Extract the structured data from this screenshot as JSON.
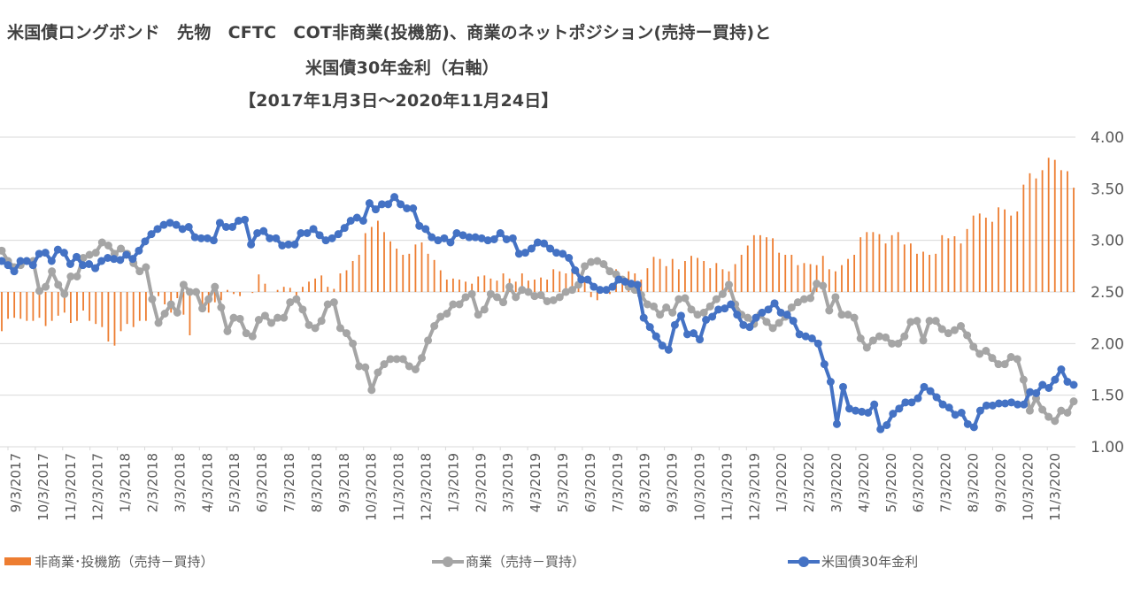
{
  "title_lines": [
    "米国債ロングボンド　先物　CFTC　COT非商業(投機筋)、商業のネットポジション(売持ー買持)と",
    "米国債30年金利（右軸）",
    "【2017年1月3日～2020年11月24日】"
  ],
  "legend": {
    "noncommercial": "非商業･投機筋（売持－買持）",
    "commercial": "商業（売持－買持）",
    "yield": "米国債30年金利"
  },
  "colors": {
    "noncommercial": "#ed7d31",
    "commercial": "#a5a5a5",
    "yield": "#4472c4",
    "grid": "#d9d9d9",
    "axis_text": "#595959"
  },
  "chart_data": {
    "type": "bar+line",
    "right_axis": {
      "ylim": [
        1.0,
        4.0
      ],
      "ticks": [
        "1.00",
        "1.50",
        "2.00",
        "2.50",
        "3.00",
        "3.50",
        "4.00"
      ]
    },
    "bar_baseline": 2.5,
    "grid": true,
    "legend_position": "bottom",
    "x_tick_labels": [
      "9/3/2017",
      "10/3/2017",
      "11/3/2017",
      "12/3/2017",
      "1/3/2018",
      "2/3/2018",
      "3/3/2018",
      "4/3/2018",
      "5/3/2018",
      "6/3/2018",
      "7/3/2018",
      "8/3/2018",
      "9/3/2018",
      "10/3/2018",
      "11/3/2018",
      "12/3/2018",
      "1/3/2019",
      "2/3/2019",
      "3/3/2019",
      "4/3/2019",
      "5/3/2019",
      "6/3/2019",
      "7/3/2019",
      "8/3/2019",
      "9/3/2019",
      "10/3/2019",
      "11/3/2019",
      "12/3/2019",
      "1/3/2020",
      "2/3/2020",
      "3/3/2020",
      "4/3/2020",
      "5/3/2020",
      "6/3/2020",
      "7/3/2020",
      "8/3/2020",
      "9/3/2020",
      "10/3/2020",
      "11/3/2020"
    ],
    "series": [
      {
        "name": "非商業･投機筋（売持－買持）",
        "type": "bar",
        "values": [
          2.12,
          2.24,
          2.25,
          2.24,
          2.22,
          2.22,
          2.25,
          2.17,
          2.22,
          2.27,
          2.3,
          2.2,
          2.22,
          2.32,
          2.22,
          2.19,
          2.16,
          2.02,
          1.98,
          2.12,
          2.19,
          2.16,
          2.22,
          2.22,
          2.47,
          2.46,
          2.38,
          2.3,
          2.44,
          2.28,
          2.08,
          2.48,
          2.38,
          2.3,
          2.4,
          2.42,
          2.52,
          2.48,
          2.46,
          2.5,
          2.49,
          2.67,
          2.58,
          2.5,
          2.52,
          2.55,
          2.54,
          2.46,
          2.55,
          2.6,
          2.63,
          2.66,
          2.55,
          2.53,
          2.68,
          2.71,
          2.8,
          2.86,
          3.07,
          3.13,
          3.19,
          3.08,
          2.99,
          2.92,
          2.86,
          2.87,
          2.96,
          2.98,
          2.87,
          2.81,
          2.71,
          2.62,
          2.63,
          2.62,
          2.6,
          2.58,
          2.65,
          2.66,
          2.63,
          2.61,
          2.68,
          2.63,
          2.6,
          2.68,
          2.61,
          2.62,
          2.64,
          2.62,
          2.72,
          2.7,
          2.68,
          2.72,
          2.7,
          2.62,
          2.45,
          2.42,
          2.5,
          2.48,
          2.72,
          2.64,
          2.7,
          2.68,
          2.62,
          2.73,
          2.84,
          2.82,
          2.75,
          2.82,
          2.72,
          2.8,
          2.85,
          2.83,
          2.8,
          2.73,
          2.78,
          2.72,
          2.7,
          2.77,
          2.86,
          2.95,
          3.05,
          3.05,
          3.03,
          3.02,
          2.88,
          2.86,
          2.86,
          2.76,
          2.78,
          2.77,
          2.76,
          2.85,
          2.72,
          2.7,
          2.76,
          2.82,
          2.86,
          3.03,
          3.08,
          3.08,
          3.06,
          2.97,
          3.05,
          3.08,
          2.96,
          2.97,
          2.87,
          2.89,
          2.86,
          2.87,
          3.05,
          3.02,
          3.04,
          2.97,
          3.11,
          3.24,
          3.26,
          3.22,
          3.18,
          3.32,
          3.3,
          3.24,
          3.28,
          3.54,
          3.65,
          3.6,
          3.68,
          3.8,
          3.78,
          3.68,
          3.67,
          3.51
        ]
      },
      {
        "name": "商業（売持－買持）",
        "type": "line",
        "values": [
          2.9,
          2.8,
          2.74,
          2.76,
          2.8,
          2.8,
          2.51,
          2.55,
          2.7,
          2.57,
          2.48,
          2.65,
          2.65,
          2.83,
          2.86,
          2.88,
          2.98,
          2.95,
          2.87,
          2.92,
          2.87,
          2.78,
          2.7,
          2.74,
          2.43,
          2.2,
          2.29,
          2.38,
          2.3,
          2.57,
          2.5,
          2.5,
          2.34,
          2.43,
          2.55,
          2.35,
          2.12,
          2.25,
          2.24,
          2.1,
          2.07,
          2.23,
          2.27,
          2.2,
          2.25,
          2.25,
          2.4,
          2.43,
          2.33,
          2.18,
          2.15,
          2.22,
          2.38,
          2.4,
          2.15,
          2.1,
          2.0,
          1.78,
          1.77,
          1.55,
          1.72,
          1.8,
          1.85,
          1.85,
          1.85,
          1.78,
          1.75,
          1.86,
          2.03,
          2.17,
          2.26,
          2.29,
          2.38,
          2.38,
          2.45,
          2.48,
          2.28,
          2.33,
          2.48,
          2.45,
          2.4,
          2.55,
          2.45,
          2.52,
          2.5,
          2.46,
          2.47,
          2.41,
          2.42,
          2.45,
          2.5,
          2.52,
          2.57,
          2.75,
          2.79,
          2.8,
          2.77,
          2.7,
          2.67,
          2.62,
          2.55,
          2.52,
          2.47,
          2.38,
          2.36,
          2.28,
          2.35,
          2.3,
          2.43,
          2.44,
          2.33,
          2.28,
          2.3,
          2.36,
          2.43,
          2.48,
          2.57,
          2.38,
          2.28,
          2.25,
          2.19,
          2.28,
          2.21,
          2.15,
          2.2,
          2.26,
          2.35,
          2.4,
          2.43,
          2.44,
          2.58,
          2.56,
          2.32,
          2.45,
          2.28,
          2.28,
          2.25,
          2.05,
          1.96,
          2.03,
          2.07,
          2.06,
          2.0,
          2.0,
          2.07,
          2.21,
          2.22,
          2.03,
          2.22,
          2.22,
          2.14,
          2.1,
          2.13,
          2.17,
          2.08,
          1.97,
          1.9,
          1.93,
          1.86,
          1.8,
          1.8,
          1.87,
          1.85,
          1.65,
          1.35,
          1.47,
          1.36,
          1.29,
          1.25,
          1.35,
          1.33,
          1.44
        ]
      },
      {
        "name": "米国債30年金利",
        "type": "line",
        "axis": "right",
        "values": [
          2.8,
          2.76,
          2.7,
          2.8,
          2.8,
          2.76,
          2.87,
          2.88,
          2.8,
          2.91,
          2.88,
          2.77,
          2.84,
          2.76,
          2.77,
          2.73,
          2.8,
          2.83,
          2.82,
          2.81,
          2.86,
          2.82,
          2.9,
          2.99,
          3.06,
          3.11,
          3.15,
          3.17,
          3.15,
          3.11,
          3.13,
          3.03,
          3.02,
          3.02,
          3.0,
          3.17,
          3.13,
          3.13,
          3.19,
          3.2,
          2.96,
          3.07,
          3.09,
          3.02,
          3.02,
          2.95,
          2.96,
          2.96,
          3.07,
          3.07,
          3.11,
          3.05,
          3.0,
          3.02,
          3.06,
          3.12,
          3.19,
          3.22,
          3.19,
          3.36,
          3.3,
          3.35,
          3.35,
          3.42,
          3.35,
          3.31,
          3.31,
          3.14,
          3.11,
          3.03,
          3.0,
          3.02,
          2.98,
          3.07,
          3.05,
          3.03,
          3.03,
          3.02,
          3.0,
          3.01,
          3.07,
          3.01,
          3.02,
          2.87,
          2.88,
          2.92,
          2.98,
          2.97,
          2.92,
          2.88,
          2.87,
          2.83,
          2.71,
          2.62,
          2.62,
          2.55,
          2.52,
          2.52,
          2.55,
          2.62,
          2.6,
          2.58,
          2.57,
          2.25,
          2.16,
          2.07,
          1.98,
          1.94,
          2.18,
          2.27,
          2.09,
          2.1,
          2.04,
          2.23,
          2.26,
          2.33,
          2.34,
          2.38,
          2.28,
          2.18,
          2.16,
          2.25,
          2.3,
          2.33,
          2.39,
          2.3,
          2.28,
          2.22,
          2.09,
          2.07,
          2.05,
          2.0,
          1.8,
          1.63,
          1.22,
          1.58,
          1.37,
          1.35,
          1.34,
          1.33,
          1.41,
          1.17,
          1.21,
          1.32,
          1.37,
          1.43,
          1.43,
          1.47,
          1.58,
          1.54,
          1.48,
          1.41,
          1.38,
          1.31,
          1.33,
          1.22,
          1.19,
          1.35,
          1.4,
          1.4,
          1.42,
          1.42,
          1.43,
          1.41,
          1.41,
          1.53,
          1.52,
          1.6,
          1.57,
          1.65,
          1.75,
          1.63,
          1.6
        ]
      }
    ]
  }
}
